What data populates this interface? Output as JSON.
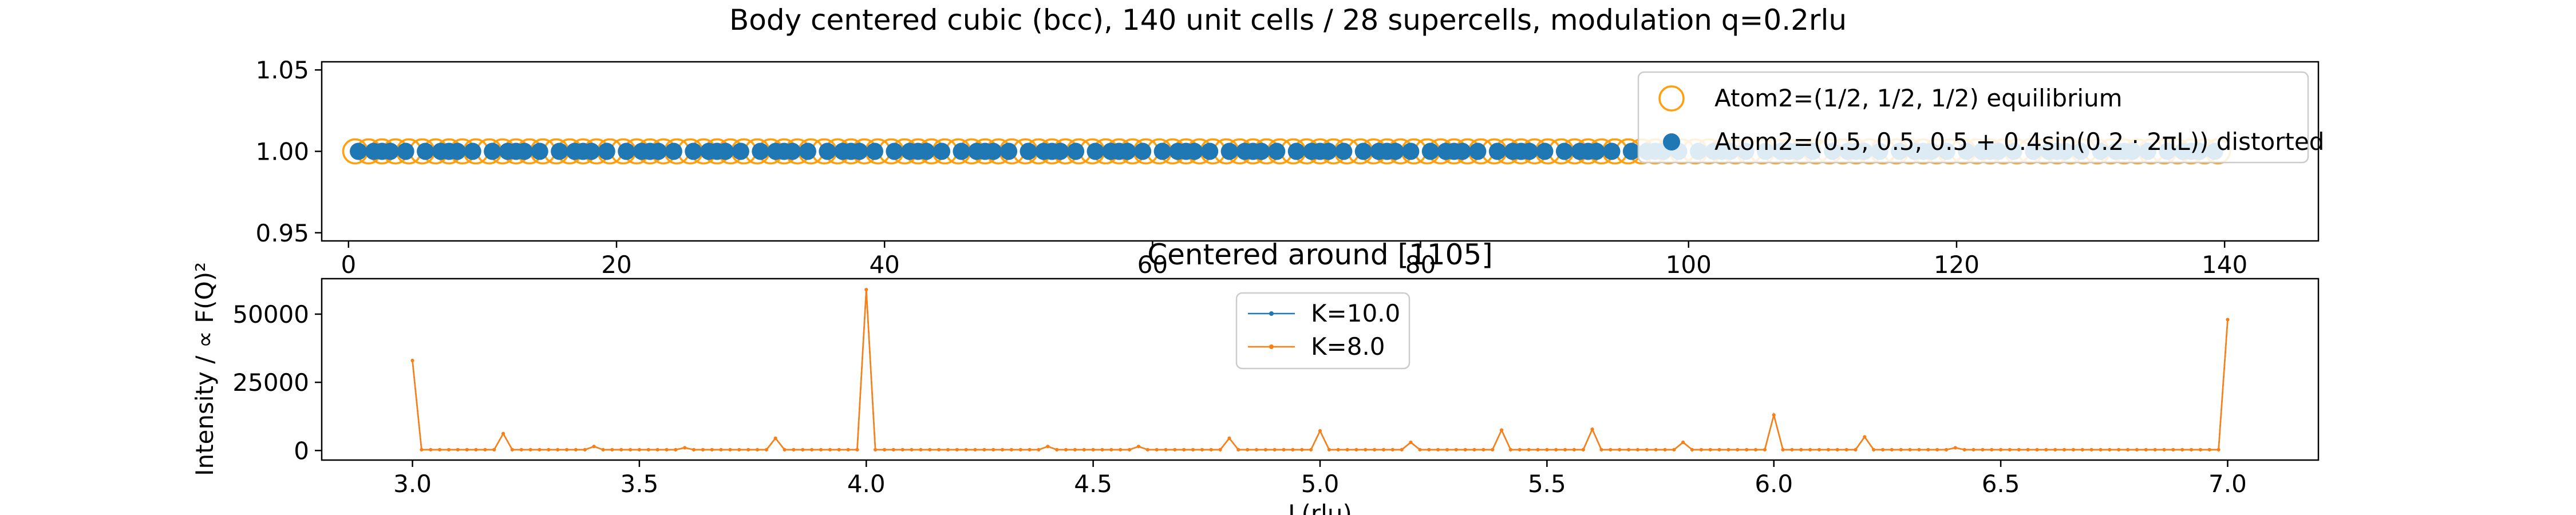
{
  "figure_title": "Body centered cubic (bcc), 140 unit cells / 28 supercells, modulation q=0.2rlu",
  "chart_data": [
    {
      "type": "scatter",
      "title": "",
      "xlabel": "",
      "ylabel": "",
      "xlim": [
        -2.0,
        147.0
      ],
      "ylim": [
        0.945,
        1.055
      ],
      "xticks": [
        0,
        20,
        40,
        60,
        80,
        100,
        120,
        140
      ],
      "yticks": [
        0.95,
        1.0,
        1.05
      ],
      "ytick_labels": [
        "0.95",
        "1.00",
        "1.05"
      ],
      "legend_position": "upper-right",
      "series": [
        {
          "name": "Atom2=(1/2, 1/2, 1/2) equilibrium",
          "marker": "open-circle",
          "color": "#ff9f0e",
          "x_start": 0.5,
          "x_step": 1,
          "count": 140,
          "y": 1.0
        },
        {
          "name": "Atom2=(0.5, 0.5, 0.5 + 0.4sin(0.2 · 2πL)) distorted",
          "marker": "filled-circle",
          "color": "#1f77b4",
          "x_start": 0.5,
          "x_step": 1,
          "count": 140,
          "modulation": {
            "amplitude": 0.4,
            "q": 0.2
          },
          "y": 1.0
        }
      ]
    },
    {
      "type": "line",
      "title": "Centered around [1105]",
      "xlabel": "L(rlu)",
      "ylabel": "Intensity / ∝ F(Q)²",
      "xlim": [
        2.8,
        7.2
      ],
      "ylim": [
        -3500,
        63000
      ],
      "xticks": [
        3.0,
        3.5,
        4.0,
        4.5,
        5.0,
        5.5,
        6.0,
        6.5,
        7.0
      ],
      "xtick_labels": [
        "3.0",
        "3.5",
        "4.0",
        "4.5",
        "5.0",
        "5.5",
        "6.0",
        "6.5",
        "7.0"
      ],
      "yticks": [
        0,
        25000,
        50000
      ],
      "ytick_labels": [
        "0",
        "25000",
        "50000"
      ],
      "legend_position": "upper-center",
      "baseline": 300,
      "x_range": [
        3.0,
        7.0
      ],
      "x_step": 0.02,
      "series": [
        {
          "name": "K=10.0",
          "color": "#1f77b4",
          "peaks": []
        },
        {
          "name": "K=8.0",
          "color": "#ff7f0e",
          "peaks": [
            {
              "x": 3.0,
              "y": 33000
            },
            {
              "x": 3.2,
              "y": 6200
            },
            {
              "x": 3.4,
              "y": 1500
            },
            {
              "x": 3.6,
              "y": 1000
            },
            {
              "x": 3.8,
              "y": 4500
            },
            {
              "x": 4.0,
              "y": 59000
            },
            {
              "x": 4.4,
              "y": 1500
            },
            {
              "x": 4.6,
              "y": 1500
            },
            {
              "x": 4.8,
              "y": 4500
            },
            {
              "x": 5.0,
              "y": 7200
            },
            {
              "x": 5.2,
              "y": 3000
            },
            {
              "x": 5.4,
              "y": 7500
            },
            {
              "x": 5.6,
              "y": 7800
            },
            {
              "x": 5.8,
              "y": 3000
            },
            {
              "x": 6.0,
              "y": 13000
            },
            {
              "x": 6.2,
              "y": 5000
            },
            {
              "x": 6.4,
              "y": 1000
            },
            {
              "x": 7.0,
              "y": 48000
            }
          ]
        }
      ]
    }
  ]
}
